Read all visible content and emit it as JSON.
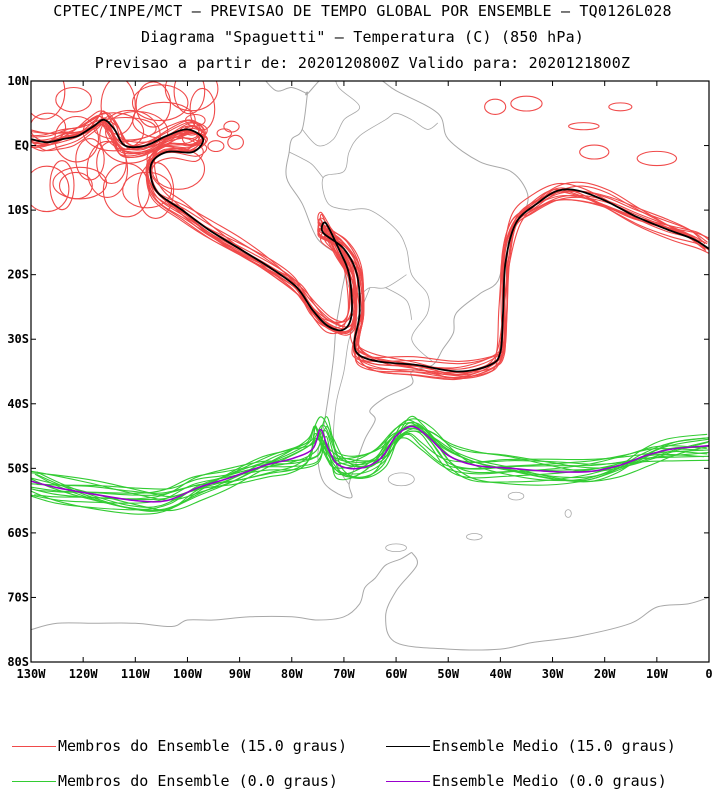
{
  "header": {
    "line1": "CPTEC/INPE/MCT – PREVISAO DE TEMPO GLOBAL POR ENSEMBLE – TQ0126L028",
    "line2": "Diagrama \"Spaguetti\" – Temperatura (C) (850 hPa)",
    "line3": "Previsao a partir de: 2020120800Z  Valido para: 2020121800Z"
  },
  "axes": {
    "lat_labels": [
      "10N",
      "EQ",
      "10S",
      "20S",
      "30S",
      "40S",
      "50S",
      "60S",
      "70S",
      "80S"
    ],
    "lon_labels": [
      "130W",
      "120W",
      "110W",
      "100W",
      "90W",
      "80W",
      "70W",
      "60W",
      "50W",
      "40W",
      "30W",
      "20W",
      "10W",
      "0"
    ],
    "lat_range": [
      10,
      -80
    ],
    "lon_range": [
      -130,
      0
    ]
  },
  "legend": [
    {
      "label": "Membros do Ensemble (15.0 graus)",
      "color": "#f04a4a"
    },
    {
      "label": "Ensemble Medio (15.0 graus)",
      "color": "#000000"
    },
    {
      "label": "Membros do Ensemble (0.0 graus)",
      "color": "#33cc33"
    },
    {
      "label": "Ensemble Medio (0.0 graus)",
      "color": "#9900cc"
    }
  ],
  "colors": {
    "coast": "#a8a8a8",
    "member15": "#f04a4a",
    "mean15": "#000000",
    "member0": "#33cc33",
    "mean0": "#9900cc"
  }
}
